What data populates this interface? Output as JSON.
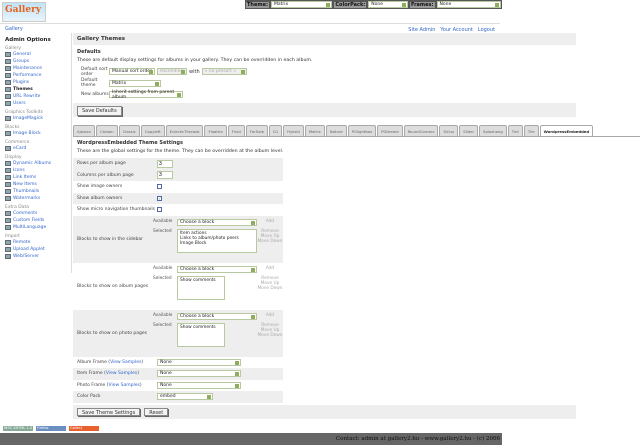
{
  "logo": "Gallery",
  "themebar": {
    "theme_label": "Theme:",
    "theme_value": "Matrix",
    "colorpack_label": "ColorPack:",
    "colorpack_value": "None",
    "frames_label": "Frames:",
    "frames_value": "None"
  },
  "breadcrumb": "Gallery",
  "toplinks": [
    "Site Admin",
    "Your Account",
    "Logout"
  ],
  "sidebar": {
    "title": "Admin Options",
    "groups": [
      {
        "name": "Gallery",
        "items": [
          "General",
          "Groups",
          "Maintenance",
          "Performance",
          "Plugins",
          "Themes",
          "URL Rewrite",
          "Users"
        ]
      },
      {
        "name": "Graphics Toolkits",
        "items": [
          "ImageMagick"
        ]
      },
      {
        "name": "Blocks",
        "items": [
          "Image Block"
        ]
      },
      {
        "name": "Commerce",
        "items": [
          "eCard"
        ]
      },
      {
        "name": "Display",
        "items": [
          "Dynamic Albums",
          "Icons",
          "Link Items",
          "New Items",
          "Thumbnails",
          "Watermarks"
        ]
      },
      {
        "name": "Extra Data",
        "items": [
          "Comments",
          "Custom Fields",
          "MultiLanguage"
        ]
      },
      {
        "name": "Import",
        "items": [
          "Remote",
          "Upload Applet",
          "Web/Server"
        ]
      }
    ],
    "current": "Themes"
  },
  "main": {
    "title": "Gallery Themes",
    "defaults_title": "Defaults",
    "defaults_desc": "These are default display settings for albums in your gallery. They can be overridden in each album.",
    "sort_label": "Default sort order",
    "sort_value": "Manual sort order",
    "sort_dir": "Ascending",
    "with_label": "with",
    "with_value": "« no presort »",
    "theme_label": "Default theme",
    "theme_value": "Matrix",
    "new_label": "New albums",
    "new_value": "Inherit settings from parent album",
    "save_defaults": "Save Defaults"
  },
  "tabs": [
    "Ajaxian",
    "Carbon",
    "Classic",
    "Copyleft",
    "EclecticThreads",
    "Floatrix",
    "Fluid",
    "ForSale",
    "G1",
    "Hybrid",
    "Matrix",
    "Nature",
    "PGlightbox",
    "PGtheme",
    "RoundCorners",
    "Siriux",
    "Slider",
    "Splashang",
    "Tint",
    "Tile",
    "WordpressEmbedded"
  ],
  "active_tab": "WordpressEmbedded",
  "theme": {
    "title": "WordpressEmbedded Theme Settings",
    "desc": "These are the global settings for the theme. They can be overridden at the album level.",
    "rows_label": "Rows per album page",
    "rows_value": "3",
    "cols_label": "Columns per album page",
    "cols_value": "3",
    "image_owners": "Show image owners",
    "image_owners_checked": false,
    "album_owners": "Show album owners",
    "album_owners_checked": true,
    "micro": "Show micro navigation thumbnails",
    "micro_checked": false,
    "available": "Available",
    "selected": "Selected",
    "choose": "Choose a block",
    "add": "Add",
    "remove": "Remove",
    "up": "Move Up",
    "down": "Move Down",
    "blocks": [
      {
        "label": "Blocks to show in the sidebar",
        "items": [
          "Item actions",
          "Links to album/photo peers",
          "Image Block"
        ]
      },
      {
        "label": "Blocks to show on album pages",
        "items": [
          "Show comments"
        ]
      },
      {
        "label": "Blocks to show on photo pages",
        "items": [
          "Show comments"
        ]
      }
    ],
    "view_samples": "View Samples",
    "album_frame": "Album Frame",
    "album_frame_value": "None",
    "item_frame": "Item Frame",
    "item_frame_value": "None",
    "photo_frame": "Photo Frame",
    "photo_frame_value": "None",
    "colorpack": "Color Pack",
    "colorpack_value": "embed",
    "save": "Save Theme Settings",
    "reset": "Reset"
  },
  "badges": [
    "W3C XHTML 1.0",
    "Firefox",
    "Gallery"
  ],
  "footer": "Contact: admin at gallery2.hu - www.gallery2.hu - (c) 2006"
}
